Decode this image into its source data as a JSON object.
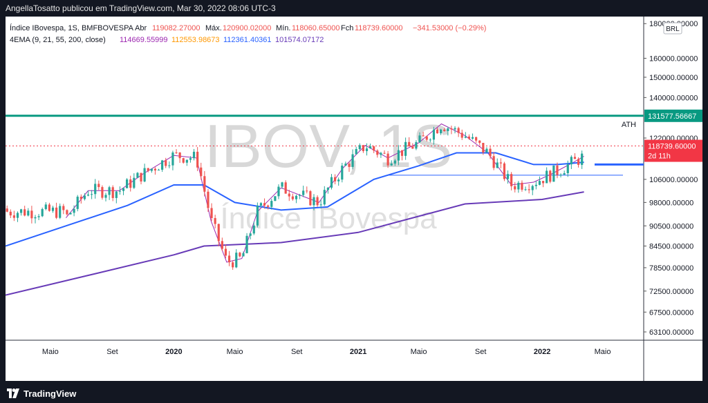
{
  "header": {
    "attribution": "AngellaTosatto publicou em TradingView.com, Mar 30, 2022 08:06 UTC-3"
  },
  "legend": {
    "symbol": "Índice IBovespa, 1S, BMFBOVESPA",
    "open_label": "Abr",
    "open": "119082.27000",
    "high_label": "Máx.",
    "high": "120900.02000",
    "low_label": "Mín.",
    "low": "118060.65000",
    "close_label": "Fch",
    "close": "118739.60000",
    "change": "−341.53000 (−0.29%)",
    "ema_label": "4EMA (9, 21, 55, 200, close)",
    "ema_values": [
      "114669.55999",
      "112553.98673",
      "112361.40361",
      "101574.07172"
    ]
  },
  "currency": "BRL",
  "watermark": {
    "ticker": "IBOV, 1S",
    "name": "Índice IBovespa"
  },
  "footer": {
    "brand": "TradingView"
  },
  "colors": {
    "up": "#26a69a",
    "down": "#ef5350",
    "ema9": "#9c27b0",
    "ema21": "#ff9800",
    "ema55": "#2962ff",
    "ema200": "#673ab7",
    "ath": "#089981",
    "price_line": "#f23645"
  },
  "chart_data": {
    "type": "candlestick",
    "timeframe": "1S",
    "y_axis": {
      "scale": "log",
      "ticks": [
        "180000.00000",
        "160000.00000",
        "150000.00000",
        "140000.00000",
        "122000.00000",
        "106000.00000",
        "98000.00000",
        "90500.00000",
        "84500.00000",
        "78500.00000",
        "72500.00000",
        "67500.00000",
        "63100.00000"
      ],
      "range": [
        60000,
        180000
      ]
    },
    "x_axis": {
      "ticks": [
        "Maio",
        "Set",
        "2020",
        "Maio",
        "Set",
        "2021",
        "Maio",
        "Set",
        "2022",
        "Maio"
      ],
      "range": [
        "2019-02-01",
        "2022-07-01"
      ]
    },
    "horizontal_levels": [
      {
        "label": "ATH",
        "value": 131577.56667,
        "value_label": "131577.56667"
      },
      {
        "label": "",
        "value": 107500
      }
    ],
    "last_price": {
      "value": 118739.6,
      "value_label": "118739.60000",
      "countdown": "2d 11h"
    },
    "series": [
      {
        "name": "EMA 9",
        "color": "#9c27b0",
        "points": [
          [
            "2019-06-01",
            93000
          ],
          [
            "2019-07-15",
            102000
          ],
          [
            "2019-09-15",
            102000
          ],
          [
            "2019-11-01",
            108000
          ],
          [
            "2020-01-01",
            115000
          ],
          [
            "2020-02-15",
            114000
          ],
          [
            "2020-03-15",
            92000
          ],
          [
            "2020-04-15",
            80000
          ],
          [
            "2020-05-15",
            81000
          ],
          [
            "2020-06-15",
            95000
          ],
          [
            "2020-08-01",
            103000
          ],
          [
            "2020-10-15",
            98000
          ],
          [
            "2020-12-01",
            110000
          ],
          [
            "2021-01-15",
            119000
          ],
          [
            "2021-03-01",
            114000
          ],
          [
            "2021-05-01",
            120000
          ],
          [
            "2021-06-15",
            128000
          ],
          [
            "2021-08-01",
            123000
          ],
          [
            "2021-09-15",
            116000
          ],
          [
            "2021-11-01",
            104000
          ],
          [
            "2021-12-15",
            105000
          ],
          [
            "2022-01-20",
            108000
          ],
          [
            "2022-03-01",
            112000
          ],
          [
            "2022-03-25",
            114670
          ]
        ]
      },
      {
        "name": "EMA 55",
        "color": "#2962ff",
        "points": [
          [
            "2019-02-01",
            84500
          ],
          [
            "2019-06-01",
            90500
          ],
          [
            "2019-10-01",
            97000
          ],
          [
            "2020-01-01",
            104000
          ],
          [
            "2020-03-01",
            104000
          ],
          [
            "2020-05-01",
            98000
          ],
          [
            "2020-08-01",
            95500
          ],
          [
            "2020-11-01",
            96500
          ],
          [
            "2021-02-01",
            106000
          ],
          [
            "2021-05-01",
            111000
          ],
          [
            "2021-07-15",
            116000
          ],
          [
            "2021-10-01",
            116000
          ],
          [
            "2021-12-15",
            111500
          ],
          [
            "2022-02-01",
            111500
          ],
          [
            "2022-03-25",
            112361
          ]
        ]
      },
      {
        "name": "EMA 200",
        "color": "#673ab7",
        "points": [
          [
            "2019-02-01",
            71500
          ],
          [
            "2019-08-01",
            77000
          ],
          [
            "2020-01-01",
            82000
          ],
          [
            "2020-03-01",
            84500
          ],
          [
            "2020-08-01",
            85500
          ],
          [
            "2021-01-01",
            88500
          ],
          [
            "2021-05-01",
            93500
          ],
          [
            "2021-08-01",
            97500
          ],
          [
            "2022-01-01",
            99000
          ],
          [
            "2022-03-25",
            101574
          ]
        ]
      }
    ]
  }
}
